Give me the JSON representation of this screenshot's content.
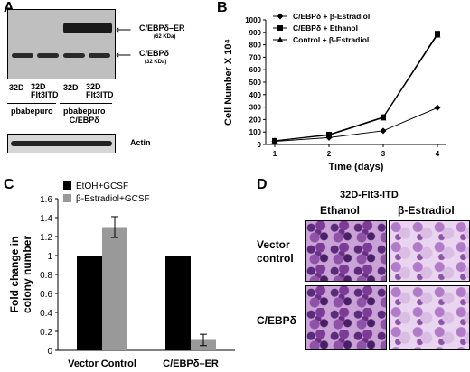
{
  "panelA": {
    "letter": "A",
    "label_er": "C/EBPδ–ER",
    "label_er_kda": "(62 KDa)",
    "label_d": "C/EBPδ",
    "label_d_kda": "(32 KDa)",
    "lanes": [
      "32D",
      "32D\nFlt3ITD",
      "32D",
      "32D\nFlt3ITD"
    ],
    "group1": "pbabepuro",
    "group2": "pbabepuro\nC/EBPδ",
    "actin": "Actin"
  },
  "panelB": {
    "letter": "B",
    "chart_data": {
      "type": "line",
      "x": [
        1,
        2,
        3,
        4
      ],
      "xlabel": "Time (days)",
      "ylabel": "Cell Number X 10⁴",
      "ylim": [
        0,
        1000
      ],
      "yticks": [
        0,
        100,
        200,
        300,
        400,
        500,
        600,
        700,
        800,
        900,
        1000
      ],
      "xticks": [
        1,
        2,
        3,
        4
      ],
      "legend_placement": "top-left",
      "series": [
        {
          "name": "C/EBPδ + β-Estradiol",
          "marker": "diamond",
          "values": [
            25,
            55,
            110,
            295
          ]
        },
        {
          "name": "C/EBPδ + Ethanol",
          "marker": "square",
          "values": [
            30,
            80,
            220,
            890
          ]
        },
        {
          "name": "Control + β-Estradiol",
          "marker": "triangle",
          "values": [
            30,
            75,
            215,
            880
          ]
        }
      ]
    }
  },
  "panelC": {
    "letter": "C",
    "chart_data": {
      "type": "bar",
      "categories": [
        "Vector Control",
        "C/EBPδ–ER"
      ],
      "ylabel": "Fold change in colony number",
      "ylim": [
        0,
        1.6
      ],
      "yticks": [
        0,
        0.2,
        0.4,
        0.6,
        0.8,
        1,
        1.2,
        1.4,
        1.6
      ],
      "legend_placement": "top-left",
      "series": [
        {
          "name": "EtOH+GCSF",
          "color": "#000000",
          "values": [
            1.0,
            1.0
          ],
          "errors": [
            0,
            0
          ]
        },
        {
          "name": "β-Estradiol+GCSF",
          "color": "#999999",
          "values": [
            1.3,
            0.11
          ],
          "errors": [
            0.11,
            0.06
          ]
        }
      ]
    }
  },
  "panelD": {
    "letter": "D",
    "title": "32D-Flt3-ITD",
    "col1": "Ethanol",
    "col2": "β-Estradiol",
    "row1": "Vector\ncontrol",
    "row2": "C/EBPδ"
  }
}
